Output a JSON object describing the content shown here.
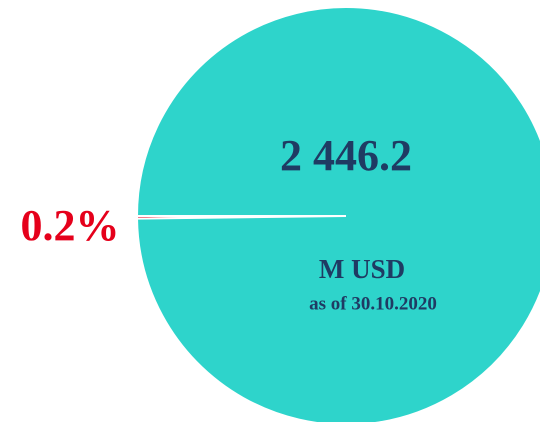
{
  "chart_data": {
    "type": "pie",
    "values": [
      99.8,
      0.2
    ],
    "value_labels": [
      null,
      "0.2%"
    ],
    "colors": [
      "#2ed4cb",
      "#e5001b"
    ],
    "center_value": "2 446.2",
    "unit": "M USD",
    "as_of": "as of 30.10.2020"
  }
}
